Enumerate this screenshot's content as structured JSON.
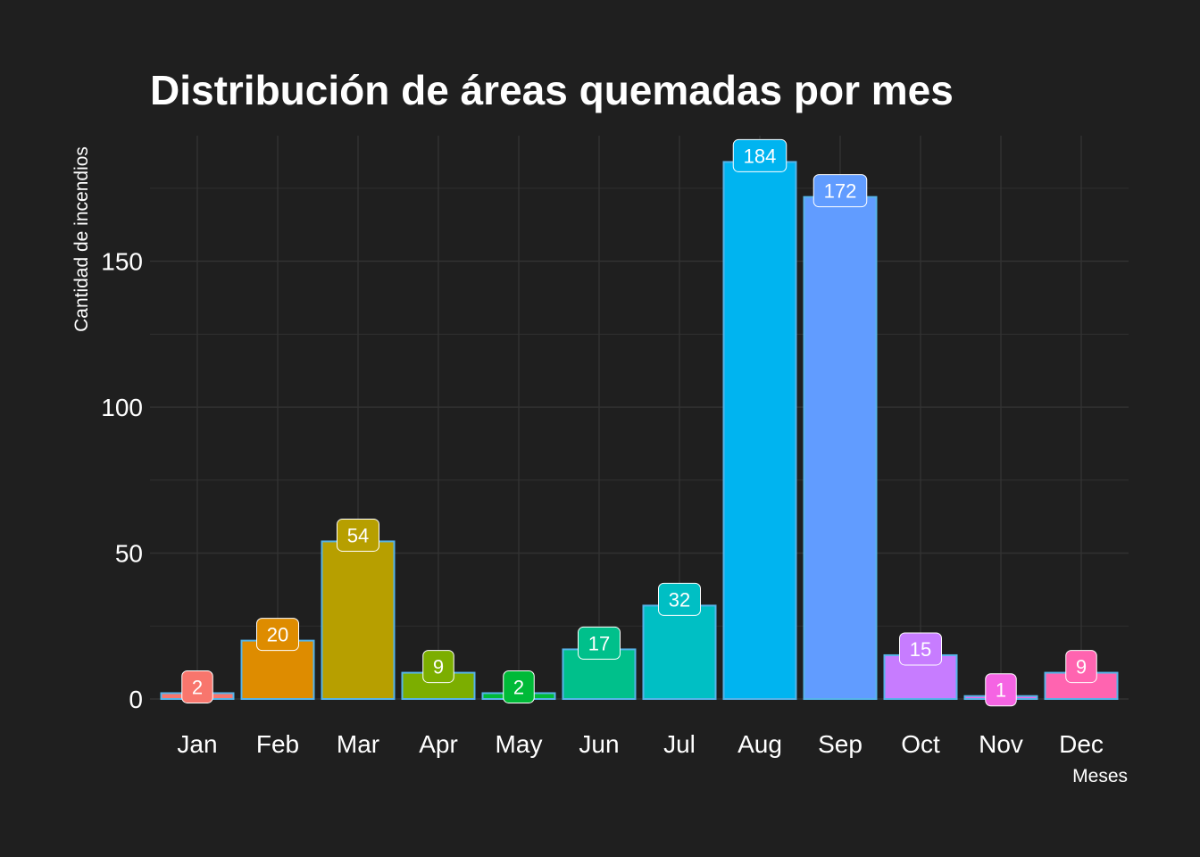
{
  "chart_data": {
    "type": "bar",
    "title": "Distribución de áreas quemadas por mes",
    "xlabel": "Meses",
    "ylabel": "Cantidad de incendios",
    "categories": [
      "Jan",
      "Feb",
      "Mar",
      "Apr",
      "May",
      "Jun",
      "Jul",
      "Aug",
      "Sep",
      "Oct",
      "Nov",
      "Dec"
    ],
    "values": [
      2,
      20,
      54,
      9,
      2,
      17,
      32,
      184,
      172,
      15,
      1,
      9
    ],
    "value_labels": [
      "2",
      "20",
      "54",
      "9",
      "2",
      "17",
      "32",
      "184",
      "172",
      "15",
      "1",
      "9"
    ],
    "colors": [
      "#F8766D",
      "#DE8C00",
      "#B79F00",
      "#7CAE00",
      "#00BA38",
      "#00C08B",
      "#00BFC4",
      "#00B4F0",
      "#619CFF",
      "#C77CFF",
      "#F564E3",
      "#FF64B0"
    ],
    "bar_outline_color": "#56B4E9",
    "ylim": [
      0,
      193
    ],
    "yticks": [
      0,
      50,
      100,
      150
    ],
    "ytick_labels": [
      "0",
      "50",
      "100",
      "150"
    ],
    "grid": true,
    "legend": "none",
    "background_color": "#1f1f1f",
    "grid_color": "#333333",
    "text_color": "#ffffff"
  }
}
